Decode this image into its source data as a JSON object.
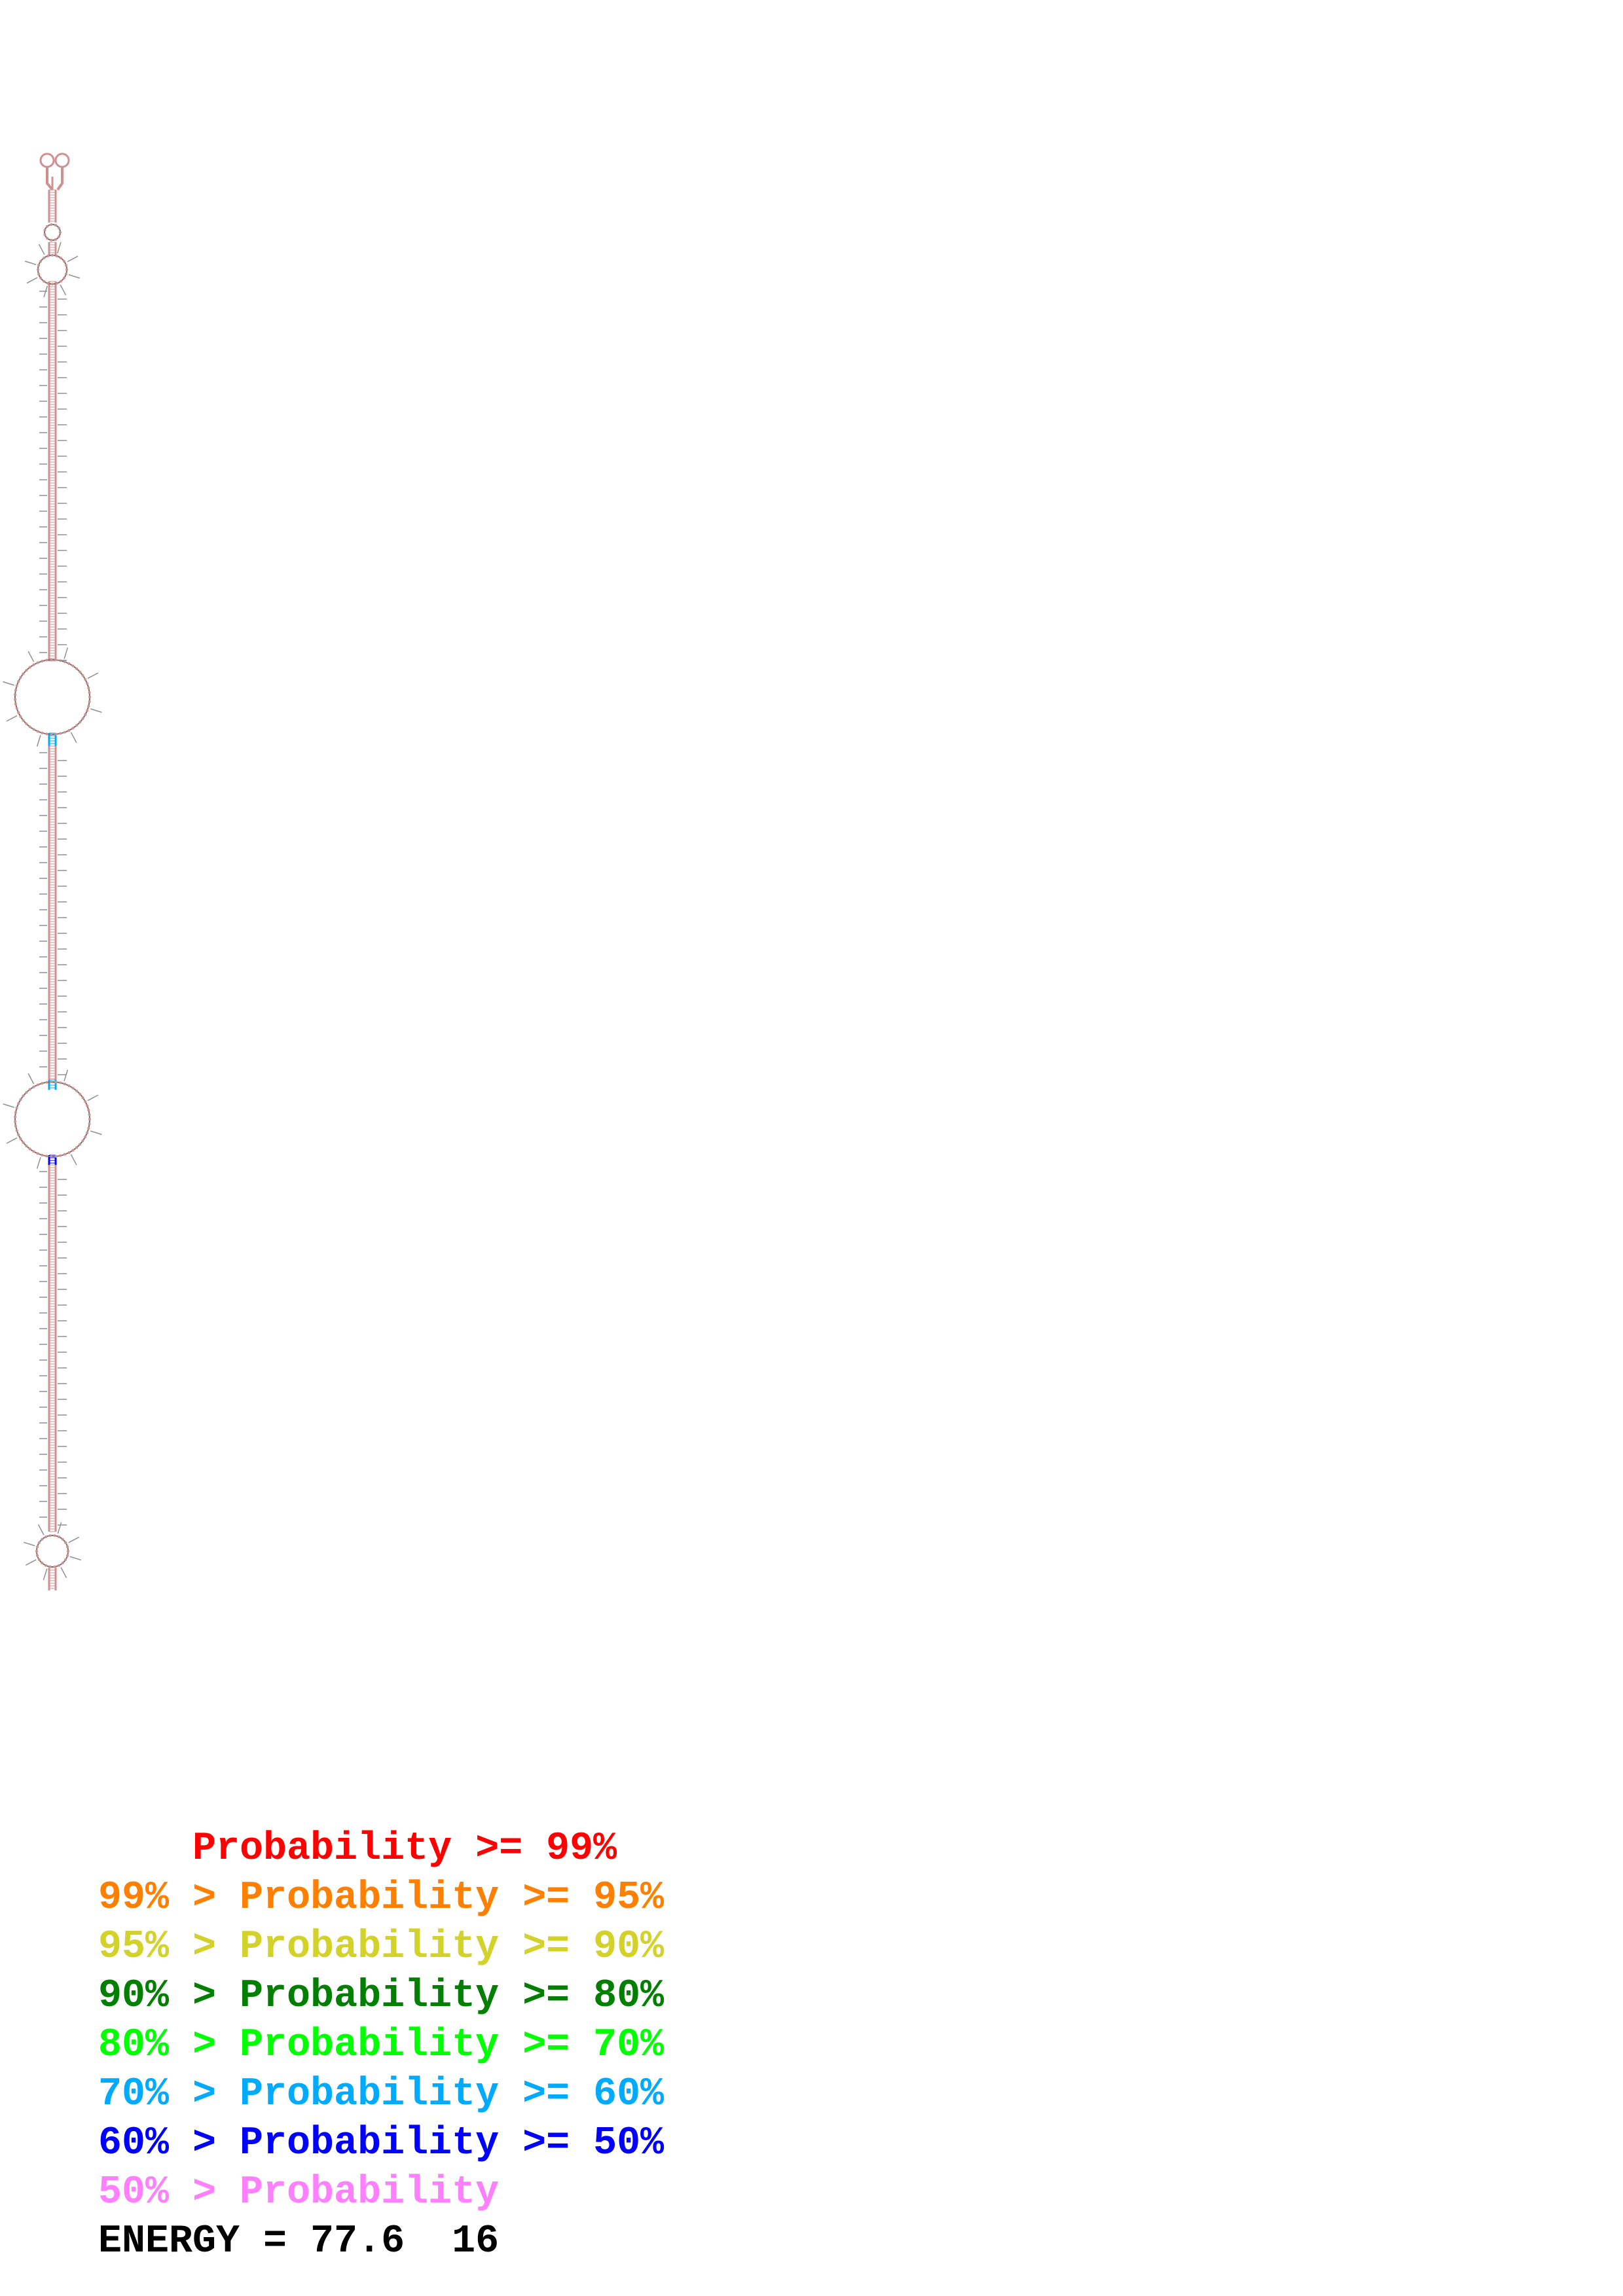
{
  "legend": {
    "rows": [
      {
        "text": "    Probability >= 99%",
        "color": "#ff0000"
      },
      {
        "text": "99% > Probability >= 95%",
        "color": "#ff7f00"
      },
      {
        "text": "95% > Probability >= 90%",
        "color": "#d2d22a"
      },
      {
        "text": "90% > Probability >= 80%",
        "color": "#007f00"
      },
      {
        "text": "80% > Probability >= 70%",
        "color": "#00ff00"
      },
      {
        "text": "70% > Probability >= 60%",
        "color": "#00aaff"
      },
      {
        "text": "60% > Probability >= 50%",
        "color": "#0000ff"
      },
      {
        "text": "50% > Probability",
        "color": "#ff80ff"
      }
    ]
  },
  "energy": {
    "text": "ENERGY = 77.6  16",
    "color": "#000000"
  },
  "structure": {
    "stem_color": "#d09090",
    "loop_outline_color": "#707070",
    "helix_segment_probability_colors": [
      "#ff0000",
      "#00aaff",
      "#0000ff"
    ]
  }
}
